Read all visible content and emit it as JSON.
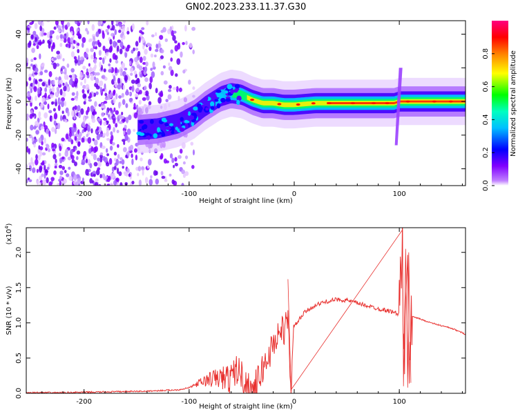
{
  "figure": {
    "title": "GN02.2023.233.11.37.G30"
  },
  "chart_data": [
    {
      "type": "heatmap",
      "xlabel": "Height of straight line (km)",
      "ylabel": "Frequency (Hz)",
      "xlim": [
        -255,
        163
      ],
      "ylim": [
        -50,
        48
      ],
      "x_ticks": [
        -200,
        -100,
        0,
        100
      ],
      "y_ticks": [
        -40,
        -20,
        0,
        20,
        40
      ],
      "colorbar": {
        "label": "Normalized spectral amplitude",
        "range": [
          0,
          1
        ],
        "ticks": [
          0.0,
          0.2,
          0.4,
          0.6,
          0.8
        ],
        "colormap": [
          "#ffffff",
          "#8000ff",
          "#0000ff",
          "#00ffff",
          "#00ff00",
          "#ffff00",
          "#ff8000",
          "#ff0000",
          "#ff0080"
        ]
      },
      "ridge": [
        {
          "x": -150,
          "y": -17
        },
        {
          "x": -130,
          "y": -16
        },
        {
          "x": -110,
          "y": -13
        },
        {
          "x": -95,
          "y": -8
        },
        {
          "x": -85,
          "y": -3
        },
        {
          "x": -70,
          "y": 3
        },
        {
          "x": -60,
          "y": 5
        },
        {
          "x": -50,
          "y": 4
        },
        {
          "x": -40,
          "y": 1
        },
        {
          "x": -30,
          "y": -1
        },
        {
          "x": -20,
          "y": -1
        },
        {
          "x": -10,
          "y": -2
        },
        {
          "x": 0,
          "y": -2
        },
        {
          "x": 20,
          "y": -1
        },
        {
          "x": 40,
          "y": -1
        },
        {
          "x": 60,
          "y": -1
        },
        {
          "x": 80,
          "y": -1
        },
        {
          "x": 95,
          "y": -1
        },
        {
          "x": 100,
          "y": 0
        },
        {
          "x": 110,
          "y": 0
        },
        {
          "x": 130,
          "y": 0
        },
        {
          "x": 163,
          "y": 0
        }
      ]
    },
    {
      "type": "line",
      "xlabel": "Height of straight line (km)",
      "ylabel": "SNR (10 * v/v)",
      "y_scale_label": "(x10",
      "y_scale_exponent": "4",
      "y_scale_close": ")",
      "xlim": [
        -255,
        163
      ],
      "ylim": [
        0,
        2.35
      ],
      "x_ticks": [
        -200,
        -100,
        0,
        100
      ],
      "y_ticks": [
        0.0,
        0.5,
        1.0,
        1.5,
        2.0
      ],
      "color": "#e8312f",
      "series": [
        {
          "x": [
            -255,
            -220,
            -180,
            -140,
            -110,
            -100,
            -90,
            -80,
            -70,
            -60,
            -55,
            -50,
            -45,
            -40,
            -35,
            -30,
            -25,
            -20,
            -15,
            -10,
            -6,
            -3,
            0,
            10,
            20,
            30,
            40,
            50,
            60,
            70,
            80,
            90,
            95,
            100,
            103,
            105,
            108,
            110,
            112,
            115,
            130,
            150,
            163
          ],
          "y": [
            0.01,
            0.01,
            0.02,
            0.03,
            0.05,
            0.08,
            0.15,
            0.2,
            0.22,
            0.2,
            0.35,
            0.25,
            0.1,
            0.05,
            0.15,
            0.35,
            0.5,
            0.7,
            0.85,
            0.9,
            1.0,
            0.1,
            0.95,
            1.15,
            1.25,
            1.3,
            1.33,
            1.32,
            1.28,
            1.24,
            1.2,
            1.17,
            1.15,
            1.12,
            2.05,
            0.1,
            1.9,
            0.1,
            1.1,
            1.08,
            1.0,
            0.92,
            0.84
          ]
        }
      ]
    }
  ]
}
